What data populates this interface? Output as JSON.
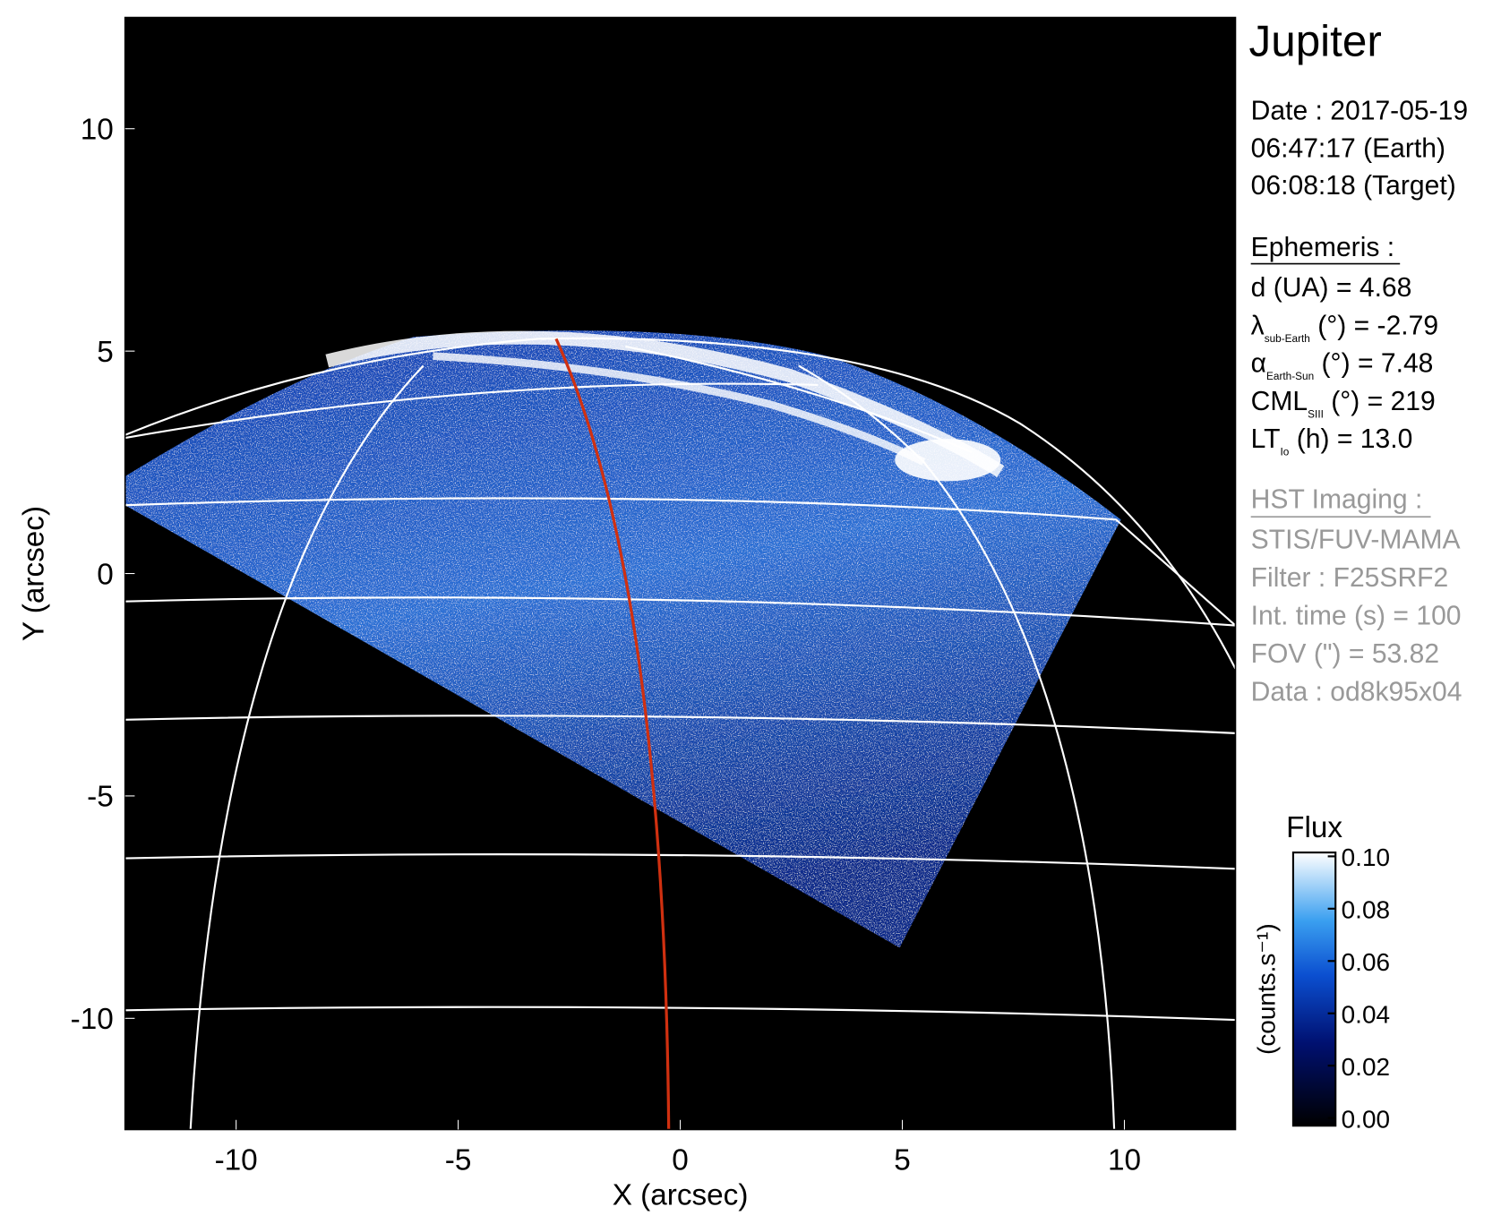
{
  "chart_data": {
    "type": "image",
    "xlabel": "X (arcsec)",
    "ylabel": "Y (arcsec)",
    "xlim": [
      -12.5,
      12.5
    ],
    "ylim": [
      -12.5,
      12.5
    ],
    "xticks": [
      -10,
      -5,
      0,
      5,
      10
    ],
    "yticks": [
      -10,
      -5,
      0,
      5,
      10
    ],
    "colorbar": {
      "title": "Flux",
      "label": "(counts.s⁻¹)",
      "lim": [
        0,
        0.1
      ],
      "ticks": [
        {
          "value": 0,
          "label": "0.00"
        },
        {
          "value": 0.02,
          "label": "0.02"
        },
        {
          "value": 0.04,
          "label": "0.04"
        },
        {
          "value": 0.06,
          "label": "0.06"
        },
        {
          "value": 0.08,
          "label": "0.08"
        },
        {
          "value": 0.1,
          "label": "0.10"
        }
      ]
    }
  },
  "info": {
    "title": "Jupiter",
    "date": [
      "Date : 2017-05-19",
      "06:47:17 (Earth)",
      "06:08:18 (Target)"
    ],
    "ephemeris_title": "Ephemeris :",
    "ephemeris": [
      {
        "main": "d (UA)    = 4.68"
      },
      {
        "main": "λ",
        "sub": "sub-Earth",
        "rest": " (°) = -2.79"
      },
      {
        "main": "α",
        "sub": "Earth-Sun",
        "rest": " (°) = 7.48"
      },
      {
        "main": "CML",
        "sub": "SIII",
        "rest": " (°) = 219"
      },
      {
        "main": "LT",
        "sub": "Io",
        "rest": " (h) = 13.0"
      }
    ],
    "hst_title": "HST Imaging :",
    "hst": [
      "STIS/FUV-MAMA",
      "Filter : F25SRF2",
      "Int. time (s) = 100",
      "FOV (\") = 53.82",
      "Data : od8k95x04"
    ]
  }
}
